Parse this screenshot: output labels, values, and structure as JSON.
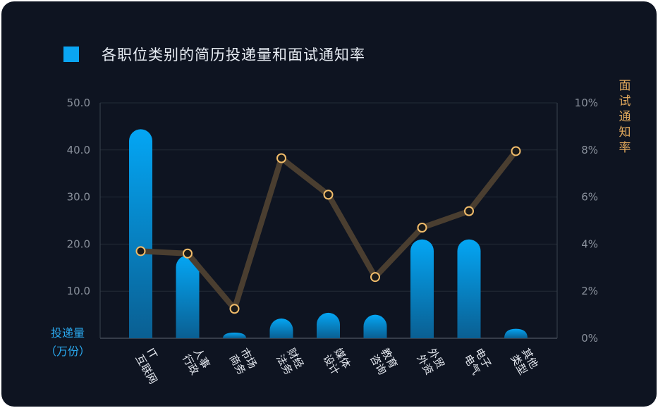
{
  "colors": {
    "background": "#0e1421",
    "bar_top": "#04a6f4",
    "bar_bottom": "#0a5f92",
    "line": "#4a3e30",
    "marker_stroke": "#f2bd6b",
    "left_axis_label": "#2aa9ef",
    "right_axis_label": "#e0a85c"
  },
  "chart_data": {
    "type": "bar",
    "title": "各职位类别的简历投递量和面试通知率",
    "categories": [
      "IT互联网",
      "人事行政",
      "市场商务",
      "财经法务",
      "媒体设计",
      "教育咨询",
      "外贸外资",
      "电子电气",
      "其他类型"
    ],
    "series": [
      {
        "name": "各职位类别的简历投递量和面试通知率",
        "type": "bar",
        "axis": "left",
        "values": [
          44.4,
          17.6,
          1.2,
          4.2,
          5.4,
          5.0,
          21.0,
          21.0,
          2.0
        ]
      },
      {
        "type": "line",
        "axis": "right",
        "values": [
          3.7,
          3.6,
          1.25,
          7.65,
          6.1,
          2.6,
          4.7,
          5.4,
          7.95
        ]
      }
    ],
    "ylabel_left": "投递量",
    "ylabel_left_unit": "（万份）",
    "ylabel_right": "面试通知率",
    "ylim_left": [
      0,
      50
    ],
    "ylim_right": [
      0,
      10
    ],
    "yticks_left": [
      "50.0",
      "40.0",
      "30.0",
      "20.0",
      "10.0"
    ],
    "yticks_right": [
      "10%",
      "8%",
      "6%",
      "4%",
      "2%",
      "0%"
    ],
    "grid": true,
    "legend_position": "top-left"
  }
}
